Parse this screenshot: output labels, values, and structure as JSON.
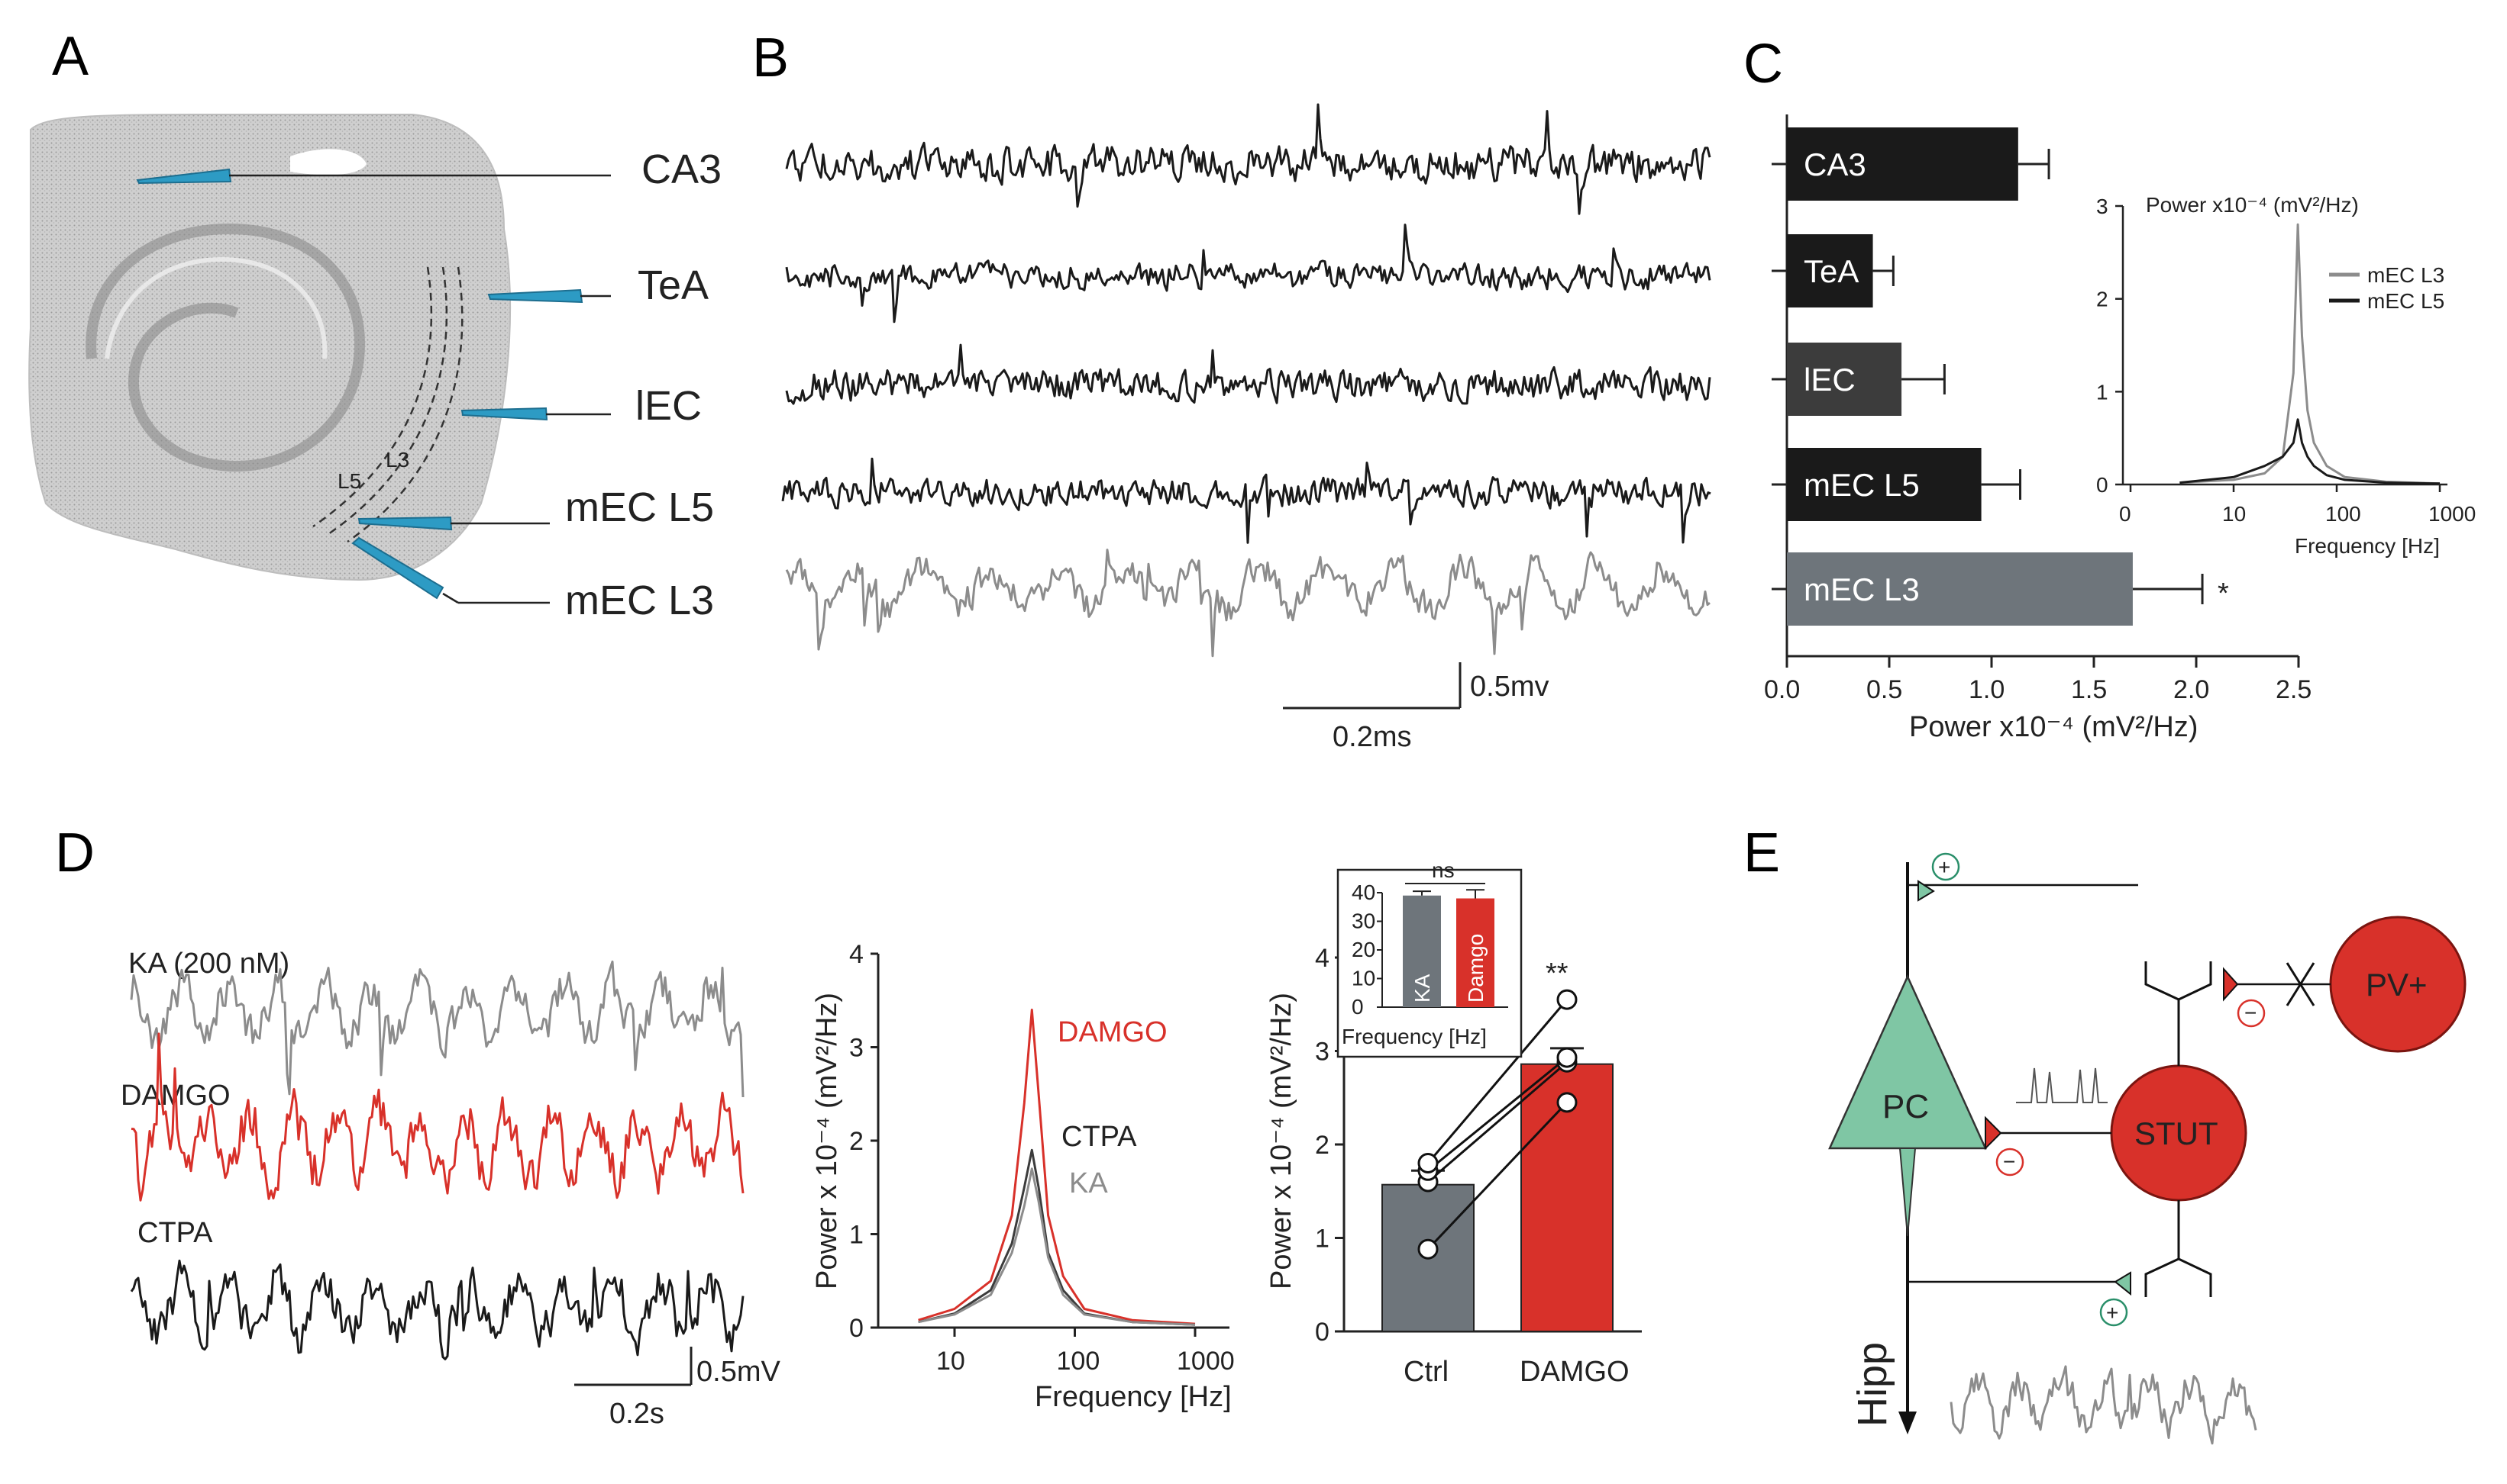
{
  "colors": {
    "black": "#1a1a1a",
    "gray": "#8c8c8c",
    "red": "#d8312a",
    "green": "#7fc6a4",
    "darkgray": "#3c3c3c",
    "midgray": "#6f7378",
    "slateBar": "#6e757b",
    "electrode": "#2d9bc4"
  },
  "panels": {
    "A": "A",
    "B": "B",
    "C": "C",
    "D": "D",
    "E": "E"
  },
  "panel_A": {
    "regions": [
      "CA3",
      "TeA",
      "lEC",
      "mEC L5",
      "mEC L3"
    ],
    "layer_labels": [
      "L5",
      "L3"
    ]
  },
  "panel_B": {
    "traces": [
      "CA3",
      "TeA",
      "lEC",
      "mEC L5",
      "mEC L3"
    ],
    "scale_y": "0.5mv",
    "scale_x": "0.2ms"
  },
  "panel_D_traces": {
    "labels": [
      "KA (200 nM)",
      "DAMGO",
      "CTPA"
    ],
    "scale_y": "0.5mV",
    "scale_x": "0.2s"
  },
  "panel_E": {
    "cells": {
      "pc": "PC",
      "stut": "STUT",
      "pv": "PV+"
    },
    "output_label": "Hipp",
    "signs": [
      "+",
      "−",
      "−",
      "+"
    ]
  },
  "chart_data": [
    {
      "id": "C-bar",
      "type": "bar",
      "orientation": "horizontal",
      "categories": [
        "CA3",
        "TeA",
        "lEC",
        "mEC L5",
        "mEC L3"
      ],
      "values": [
        1.13,
        0.42,
        0.56,
        0.95,
        1.69
      ],
      "errors": [
        0.15,
        0.1,
        0.21,
        0.19,
        0.34
      ],
      "significance": [
        "",
        "",
        "",
        "",
        "*"
      ],
      "xlabel": "Power x10⁻⁴ (mV²/Hz)",
      "xlim": [
        0,
        2.5
      ],
      "xticks": [
        "0.0",
        "0.5",
        "1.0",
        "1.5",
        "2.0",
        "2.5"
      ]
    },
    {
      "id": "C-inset",
      "type": "line",
      "title": "Power x10⁻⁴ (mV²/Hz)",
      "xlabel": "Frequency [Hz]",
      "xscale": "log",
      "xticks": [
        "0",
        "10",
        "100",
        "1000"
      ],
      "yticks": [
        "0",
        "1",
        "2",
        "3"
      ],
      "ylim": [
        0,
        3
      ],
      "series": [
        {
          "name": "mEC L3",
          "color": "gray",
          "x": [
            3,
            10,
            20,
            30,
            38,
            42,
            46,
            52,
            60,
            80,
            120,
            300,
            1000
          ],
          "y": [
            0.02,
            0.05,
            0.12,
            0.3,
            1.2,
            2.8,
            1.6,
            0.8,
            0.45,
            0.2,
            0.08,
            0.03,
            0.01
          ]
        },
        {
          "name": "mEC L5",
          "color": "black",
          "x": [
            3,
            10,
            20,
            30,
            38,
            42,
            46,
            52,
            60,
            80,
            120,
            300,
            1000
          ],
          "y": [
            0.02,
            0.08,
            0.2,
            0.3,
            0.45,
            0.7,
            0.45,
            0.3,
            0.2,
            0.1,
            0.05,
            0.02,
            0.01
          ]
        }
      ],
      "legend": [
        "mEC L3",
        "mEC L5"
      ]
    },
    {
      "id": "D-spectrum",
      "type": "line",
      "xlabel": "Frequency [Hz]",
      "ylabel": "Power x 10⁻⁴ (mV²/Hz)",
      "xscale": "log",
      "xticks": [
        "10",
        "100",
        "1000"
      ],
      "yticks": [
        "0",
        "1",
        "2",
        "3",
        "4"
      ],
      "ylim": [
        0,
        4
      ],
      "series": [
        {
          "name": "DAMGO",
          "color": "red",
          "x": [
            5,
            10,
            20,
            30,
            38,
            44,
            50,
            60,
            80,
            120,
            300,
            1000
          ],
          "y": [
            0.08,
            0.2,
            0.5,
            1.2,
            2.4,
            3.4,
            2.5,
            1.2,
            0.55,
            0.2,
            0.08,
            0.04
          ]
        },
        {
          "name": "CTPA",
          "color": "darkgray",
          "x": [
            5,
            10,
            20,
            30,
            38,
            44,
            50,
            60,
            80,
            120,
            300,
            1000
          ],
          "y": [
            0.06,
            0.15,
            0.4,
            0.9,
            1.5,
            1.9,
            1.5,
            0.8,
            0.4,
            0.15,
            0.06,
            0.03
          ]
        },
        {
          "name": "KA",
          "color": "gray",
          "x": [
            5,
            10,
            20,
            30,
            38,
            44,
            50,
            60,
            80,
            120,
            300,
            1000
          ],
          "y": [
            0.06,
            0.14,
            0.35,
            0.8,
            1.3,
            1.7,
            1.35,
            0.75,
            0.35,
            0.14,
            0.06,
            0.03
          ]
        }
      ],
      "labels": [
        "DAMGO",
        "CTPA",
        "KA"
      ]
    },
    {
      "id": "D-bar",
      "type": "bar",
      "categories": [
        "Ctrl",
        "DAMGO"
      ],
      "values": [
        1.57,
        2.86
      ],
      "errors": [
        0.15,
        0.17
      ],
      "paired_points": [
        [
          0.88,
          2.45
        ],
        [
          1.6,
          2.88
        ],
        [
          1.72,
          2.93
        ],
        [
          1.8,
          3.55
        ]
      ],
      "significance": "**",
      "ylabel": "Power x 10⁻⁴ (mV²/Hz)",
      "yticks": [
        "0",
        "1",
        "2",
        "3",
        "4"
      ],
      "ylim": [
        0,
        4
      ]
    },
    {
      "id": "D-inset",
      "type": "bar",
      "categories": [
        "KA",
        "Damgo"
      ],
      "values": [
        39,
        38
      ],
      "errors": [
        1.5,
        3
      ],
      "significance": "ns",
      "xlabel": "Frequency [Hz]",
      "yticks": [
        "0",
        "10",
        "20",
        "30",
        "40"
      ],
      "ylim": [
        0,
        40
      ]
    }
  ]
}
